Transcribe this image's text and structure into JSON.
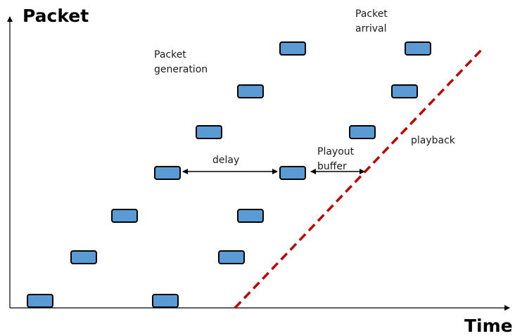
{
  "axes": {
    "y_label": "Packet",
    "x_label": "Time"
  },
  "annotations": {
    "generation": [
      "Packet",
      "generation"
    ],
    "arrival": [
      "Packet",
      "arrival"
    ],
    "delay": "delay",
    "playout_buffer": [
      "Playout",
      "buffer"
    ],
    "playback": "playback"
  },
  "colors": {
    "packet_fill": "#5b9bd5",
    "packet_stroke": "#000000",
    "playback_line": "#c00000",
    "axis": "#000000"
  }
}
